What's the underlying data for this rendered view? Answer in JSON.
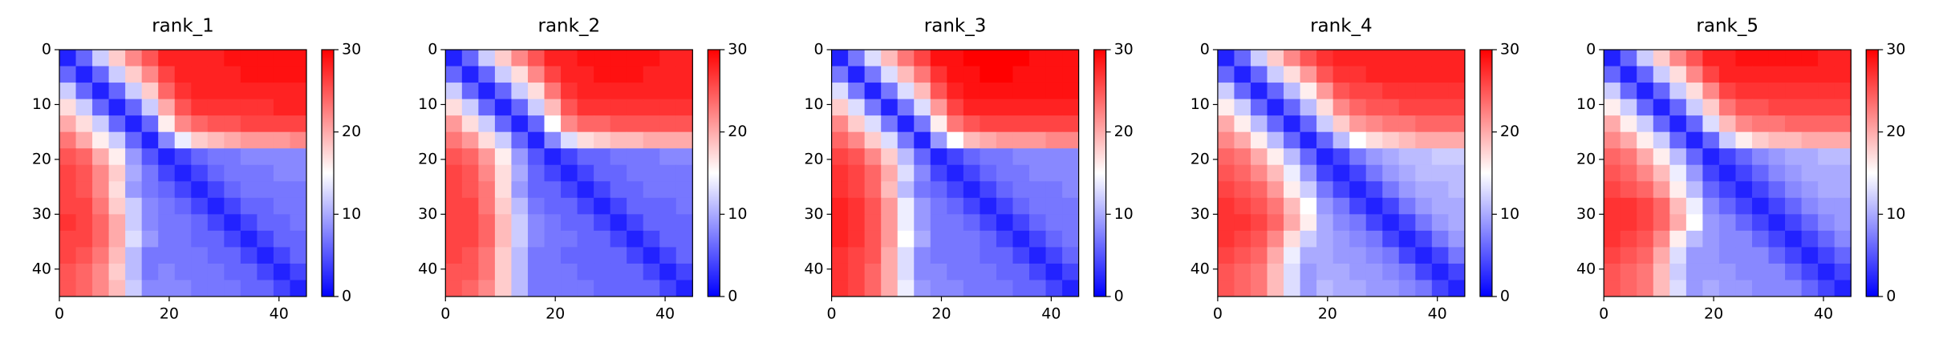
{
  "chart_data": [
    {
      "type": "heatmap",
      "title": "rank_1",
      "cmap": "bwr",
      "clim": [
        0,
        30
      ],
      "cticks": [
        0,
        10,
        20,
        30
      ],
      "xlim": [
        0,
        45
      ],
      "ylim": [
        45,
        0
      ],
      "xticks": [
        0,
        20,
        40
      ],
      "yticks": [
        0,
        10,
        20,
        30,
        40
      ],
      "values": [
        [
          2,
          6,
          12,
          18,
          22,
          25,
          28,
          28,
          28,
          28,
          29,
          29,
          29,
          29,
          29
        ],
        [
          6,
          2,
          6,
          12,
          18,
          22,
          26,
          28,
          28,
          28,
          28,
          29,
          29,
          29,
          29
        ],
        [
          12,
          6,
          2,
          6,
          12,
          18,
          24,
          27,
          28,
          28,
          28,
          28,
          28,
          28,
          28
        ],
        [
          17,
          12,
          6,
          2,
          6,
          12,
          20,
          25,
          27,
          27,
          27,
          27,
          27,
          28,
          28
        ],
        [
          20,
          17,
          12,
          6,
          2,
          6,
          16,
          22,
          24,
          25,
          25,
          26,
          26,
          26,
          26
        ],
        [
          23,
          20,
          16,
          12,
          6,
          2,
          8,
          14,
          18,
          19,
          20,
          21,
          21,
          21,
          22
        ],
        [
          25,
          24,
          20,
          16,
          9,
          5,
          2,
          4,
          6,
          7,
          7,
          8,
          8,
          8,
          8
        ],
        [
          26,
          25,
          22,
          18,
          10,
          7,
          4,
          2,
          4,
          6,
          7,
          7,
          7,
          8,
          8
        ],
        [
          26,
          25,
          22,
          17,
          9,
          7,
          6,
          4,
          2,
          4,
          6,
          7,
          7,
          7,
          7
        ],
        [
          26,
          26,
          23,
          18,
          12,
          8,
          7,
          6,
          4,
          2,
          4,
          6,
          6,
          7,
          7
        ],
        [
          27,
          26,
          24,
          20,
          12,
          8,
          7,
          7,
          6,
          4,
          2,
          4,
          6,
          6,
          7
        ],
        [
          26,
          26,
          24,
          20,
          13,
          9,
          7,
          7,
          6,
          6,
          4,
          2,
          4,
          6,
          6
        ],
        [
          26,
          25,
          23,
          19,
          11,
          7,
          7,
          7,
          7,
          6,
          6,
          4,
          2,
          4,
          6
        ],
        [
          25,
          24,
          22,
          18,
          11,
          7,
          8,
          7,
          7,
          7,
          6,
          6,
          4,
          2,
          4
        ],
        [
          25,
          24,
          22,
          19,
          12,
          8,
          8,
          8,
          7,
          7,
          7,
          6,
          6,
          4,
          2
        ]
      ]
    },
    {
      "type": "heatmap",
      "title": "rank_2",
      "cmap": "bwr",
      "clim": [
        0,
        30
      ],
      "cticks": [
        0,
        10,
        20,
        30
      ],
      "xlim": [
        0,
        45
      ],
      "ylim": [
        45,
        0
      ],
      "xticks": [
        0,
        20,
        40
      ],
      "yticks": [
        0,
        10,
        20,
        30,
        40
      ],
      "values": [
        [
          2,
          6,
          12,
          18,
          22,
          25,
          28,
          28,
          29,
          29,
          29,
          29,
          29,
          28,
          28
        ],
        [
          6,
          2,
          6,
          12,
          17,
          22,
          26,
          28,
          28,
          29,
          29,
          29,
          28,
          28,
          28
        ],
        [
          12,
          6,
          2,
          6,
          12,
          17,
          23,
          27,
          28,
          28,
          28,
          28,
          28,
          28,
          28
        ],
        [
          17,
          12,
          6,
          2,
          6,
          12,
          19,
          25,
          27,
          27,
          27,
          27,
          27,
          27,
          27
        ],
        [
          21,
          17,
          12,
          6,
          2,
          6,
          15,
          22,
          24,
          24,
          25,
          25,
          25,
          25,
          25
        ],
        [
          23,
          21,
          17,
          12,
          6,
          2,
          8,
          13,
          17,
          18,
          19,
          19,
          20,
          20,
          20
        ],
        [
          25,
          24,
          21,
          16,
          9,
          5,
          2,
          4,
          6,
          6,
          7,
          7,
          7,
          8,
          8
        ],
        [
          26,
          25,
          22,
          17,
          10,
          6,
          4,
          2,
          4,
          6,
          6,
          7,
          7,
          7,
          7
        ],
        [
          26,
          25,
          23,
          17,
          9,
          6,
          6,
          4,
          2,
          4,
          6,
          6,
          7,
          7,
          7
        ],
        [
          26,
          26,
          23,
          18,
          11,
          7,
          6,
          6,
          4,
          2,
          4,
          6,
          6,
          6,
          7
        ],
        [
          26,
          26,
          24,
          19,
          12,
          8,
          7,
          6,
          6,
          4,
          2,
          4,
          6,
          6,
          6
        ],
        [
          26,
          26,
          24,
          19,
          12,
          8,
          7,
          7,
          6,
          6,
          4,
          2,
          4,
          6,
          6
        ],
        [
          26,
          25,
          23,
          18,
          11,
          7,
          7,
          6,
          6,
          6,
          6,
          4,
          2,
          4,
          6
        ],
        [
          25,
          25,
          23,
          18,
          11,
          7,
          7,
          7,
          6,
          6,
          6,
          6,
          4,
          2,
          4
        ],
        [
          25,
          24,
          22,
          18,
          11,
          7,
          7,
          7,
          7,
          6,
          6,
          6,
          6,
          4,
          2
        ]
      ]
    },
    {
      "type": "heatmap",
      "title": "rank_3",
      "cmap": "bwr",
      "clim": [
        0,
        30
      ],
      "cticks": [
        0,
        10,
        20,
        30
      ],
      "xlim": [
        0,
        45
      ],
      "ylim": [
        45,
        0
      ],
      "xticks": [
        0,
        20,
        40
      ],
      "yticks": [
        0,
        10,
        20,
        30,
        40
      ],
      "values": [
        [
          2,
          7,
          13,
          19,
          23,
          26,
          29,
          29,
          30,
          30,
          30,
          30,
          29,
          29,
          29
        ],
        [
          7,
          2,
          7,
          13,
          19,
          23,
          27,
          29,
          29,
          30,
          30,
          29,
          29,
          29,
          29
        ],
        [
          13,
          7,
          2,
          7,
          13,
          19,
          25,
          28,
          29,
          29,
          29,
          29,
          29,
          29,
          29
        ],
        [
          18,
          13,
          7,
          2,
          7,
          13,
          21,
          26,
          28,
          28,
          28,
          28,
          28,
          28,
          28
        ],
        [
          22,
          18,
          13,
          7,
          2,
          7,
          16,
          23,
          25,
          26,
          26,
          26,
          26,
          26,
          26
        ],
        [
          24,
          22,
          18,
          13,
          7,
          2,
          9,
          15,
          19,
          20,
          21,
          21,
          21,
          22,
          22
        ],
        [
          26,
          25,
          22,
          18,
          11,
          6,
          2,
          4,
          6,
          7,
          7,
          8,
          8,
          8,
          8
        ],
        [
          27,
          26,
          24,
          20,
          13,
          8,
          4,
          2,
          4,
          6,
          7,
          7,
          8,
          8,
          8
        ],
        [
          27,
          26,
          24,
          19,
          11,
          7,
          6,
          4,
          2,
          4,
          6,
          7,
          7,
          7,
          8
        ],
        [
          28,
          27,
          25,
          21,
          14,
          9,
          7,
          6,
          4,
          2,
          4,
          6,
          7,
          7,
          7
        ],
        [
          28,
          27,
          25,
          21,
          14,
          9,
          7,
          7,
          6,
          4,
          2,
          4,
          6,
          7,
          7
        ],
        [
          28,
          27,
          25,
          21,
          15,
          10,
          7,
          7,
          7,
          6,
          4,
          2,
          4,
          6,
          7
        ],
        [
          27,
          26,
          25,
          20,
          13,
          8,
          7,
          7,
          7,
          6,
          6,
          4,
          2,
          4,
          6
        ],
        [
          27,
          26,
          24,
          20,
          13,
          8,
          8,
          7,
          7,
          7,
          6,
          6,
          4,
          2,
          4
        ],
        [
          27,
          26,
          24,
          20,
          14,
          9,
          8,
          8,
          7,
          7,
          7,
          6,
          6,
          4,
          2
        ]
      ]
    },
    {
      "type": "heatmap",
      "title": "rank_4",
      "cmap": "bwr",
      "clim": [
        0,
        30
      ],
      "cticks": [
        0,
        10,
        20,
        30
      ],
      "xlim": [
        0,
        45
      ],
      "ylim": [
        45,
        0
      ],
      "xticks": [
        0,
        20,
        40
      ],
      "yticks": [
        0,
        10,
        20,
        30,
        40
      ],
      "values": [
        [
          2,
          6,
          12,
          18,
          22,
          25,
          27,
          28,
          28,
          28,
          28,
          28,
          28,
          28,
          28
        ],
        [
          6,
          2,
          6,
          12,
          17,
          21,
          25,
          27,
          27,
          28,
          28,
          28,
          28,
          28,
          28
        ],
        [
          12,
          6,
          2,
          6,
          11,
          16,
          21,
          25,
          26,
          26,
          27,
          27,
          27,
          27,
          27
        ],
        [
          16,
          12,
          6,
          2,
          6,
          11,
          17,
          22,
          24,
          25,
          25,
          26,
          26,
          26,
          26
        ],
        [
          20,
          16,
          11,
          6,
          2,
          6,
          12,
          18,
          21,
          22,
          23,
          23,
          24,
          24,
          24
        ],
        [
          22,
          20,
          16,
          11,
          6,
          2,
          6,
          11,
          15,
          17,
          18,
          19,
          20,
          20,
          20
        ],
        [
          24,
          23,
          20,
          16,
          11,
          6,
          2,
          4,
          7,
          9,
          10,
          11,
          11,
          12,
          12
        ],
        [
          25,
          24,
          22,
          19,
          14,
          9,
          4,
          2,
          4,
          7,
          9,
          10,
          11,
          11,
          11
        ],
        [
          26,
          25,
          24,
          21,
          16,
          12,
          7,
          4,
          2,
          4,
          7,
          9,
          10,
          10,
          11
        ],
        [
          27,
          26,
          25,
          23,
          19,
          15,
          9,
          7,
          4,
          2,
          4,
          7,
          9,
          10,
          10
        ],
        [
          27,
          27,
          26,
          24,
          20,
          16,
          10,
          8,
          7,
          4,
          2,
          4,
          7,
          9,
          10
        ],
        [
          27,
          26,
          25,
          22,
          17,
          12,
          10,
          9,
          8,
          7,
          4,
          2,
          4,
          7,
          9
        ],
        [
          26,
          25,
          24,
          20,
          14,
          10,
          10,
          9,
          9,
          8,
          7,
          4,
          2,
          4,
          7
        ],
        [
          25,
          24,
          23,
          19,
          13,
          9,
          10,
          10,
          9,
          9,
          8,
          7,
          4,
          2,
          4
        ],
        [
          25,
          24,
          23,
          19,
          13,
          9,
          11,
          10,
          10,
          9,
          9,
          8,
          7,
          4,
          2
        ]
      ]
    },
    {
      "type": "heatmap",
      "title": "rank_5",
      "cmap": "bwr",
      "clim": [
        0,
        30
      ],
      "cticks": [
        0,
        10,
        20,
        30
      ],
      "xlim": [
        0,
        45
      ],
      "ylim": [
        45,
        0
      ],
      "xticks": [
        0,
        20,
        40
      ],
      "yticks": [
        0,
        10,
        20,
        30,
        40
      ],
      "values": [
        [
          2,
          6,
          12,
          18,
          22,
          25,
          28,
          28,
          29,
          29,
          29,
          29,
          29,
          28,
          28
        ],
        [
          6,
          2,
          6,
          12,
          17,
          22,
          26,
          28,
          28,
          28,
          28,
          28,
          28,
          28,
          28
        ],
        [
          12,
          6,
          2,
          6,
          12,
          17,
          22,
          26,
          27,
          27,
          27,
          27,
          27,
          27,
          27
        ],
        [
          16,
          12,
          6,
          2,
          6,
          12,
          18,
          23,
          25,
          25,
          26,
          26,
          26,
          26,
          26
        ],
        [
          20,
          16,
          12,
          6,
          2,
          6,
          13,
          19,
          22,
          23,
          23,
          24,
          24,
          24,
          24
        ],
        [
          22,
          20,
          16,
          12,
          6,
          2,
          6,
          12,
          16,
          18,
          19,
          19,
          20,
          20,
          20
        ],
        [
          24,
          23,
          20,
          16,
          11,
          6,
          2,
          4,
          6,
          8,
          9,
          10,
          10,
          11,
          11
        ],
        [
          25,
          24,
          22,
          19,
          14,
          9,
          4,
          2,
          4,
          6,
          8,
          9,
          10,
          10,
          10
        ],
        [
          26,
          25,
          24,
          21,
          16,
          11,
          6,
          4,
          2,
          4,
          6,
          8,
          9,
          10,
          10
        ],
        [
          27,
          27,
          26,
          24,
          19,
          14,
          8,
          6,
          4,
          2,
          4,
          6,
          8,
          9,
          9
        ],
        [
          27,
          27,
          26,
          24,
          20,
          15,
          9,
          8,
          6,
          4,
          2,
          4,
          6,
          8,
          9
        ],
        [
          27,
          26,
          25,
          22,
          16,
          11,
          9,
          8,
          8,
          6,
          4,
          2,
          4,
          6,
          8
        ],
        [
          26,
          25,
          24,
          20,
          13,
          9,
          9,
          8,
          8,
          8,
          6,
          4,
          2,
          4,
          6
        ],
        [
          25,
          24,
          23,
          19,
          12,
          9,
          9,
          9,
          8,
          8,
          8,
          6,
          4,
          2,
          4
        ],
        [
          25,
          24,
          23,
          19,
          13,
          9,
          10,
          9,
          9,
          8,
          8,
          8,
          6,
          4,
          2
        ]
      ]
    }
  ]
}
